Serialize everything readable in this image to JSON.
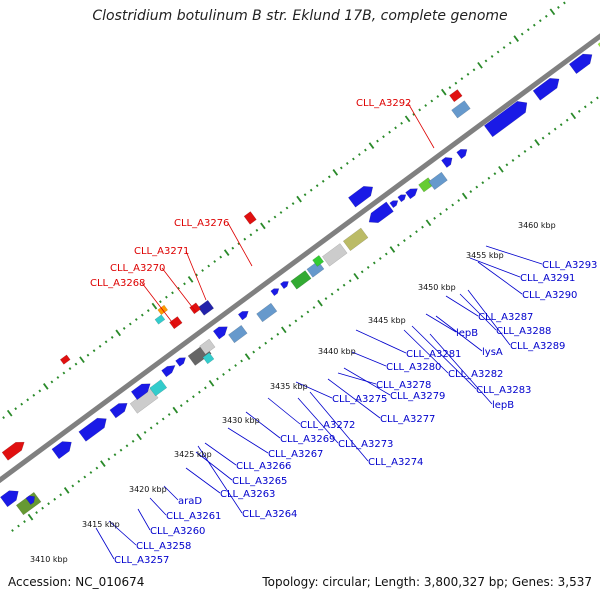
{
  "title": "Clostridium botulinum B str. Eklund 17B, complete genome",
  "footer": {
    "accession": "Accession: NC_010674",
    "topology": "Topology: circular; Length: 3,800,327 bp; Genes: 3,537"
  },
  "colors": {
    "label_forward": "#0000cc",
    "label_reverse": "#dd0000",
    "backbone": "#808080",
    "tick_dots": "#2a8a2a",
    "cds": "#1a1ae6",
    "rna_red": "#e01010"
  },
  "ticks": [
    {
      "text": "3410 kbp"
    },
    {
      "text": "3415 kbp"
    },
    {
      "text": "3420 kbp"
    },
    {
      "text": "3425 kbp"
    },
    {
      "text": "3430 kbp"
    },
    {
      "text": "3435 kbp"
    },
    {
      "text": "3440 kbp"
    },
    {
      "text": "3445 kbp"
    },
    {
      "text": "3450 kbp"
    },
    {
      "text": "3455 kbp"
    },
    {
      "text": "3460 kbp"
    }
  ],
  "labels_bottom": [
    "CLL_A3257",
    "CLL_A3258",
    "CLL_A3260",
    "CLL_A3261",
    "araD",
    "CLL_A3264",
    "CLL_A3263",
    "CLL_A3265",
    "CLL_A3266",
    "CLL_A3267",
    "CLL_A3269",
    "CLL_A3272",
    "CLL_A3274",
    "CLL_A3273",
    "CLL_A3277",
    "CLL_A3275",
    "CLL_A3279",
    "CLL_A3278",
    "CLL_A3280",
    "CLL_A3283",
    "CLL_A3282",
    "lepB",
    "CLL_A3281",
    "lysA",
    "lepB",
    "CLL_A3289",
    "CLL_A3288",
    "CLL_A3287",
    "CLL_A3290",
    "CLL_A3291",
    "CLL_A3293"
  ],
  "labels_top": [
    "CLL_A3268",
    "CLL_A3270",
    "CLL_A3271",
    "CLL_A3276",
    "CLL_A3292"
  ]
}
